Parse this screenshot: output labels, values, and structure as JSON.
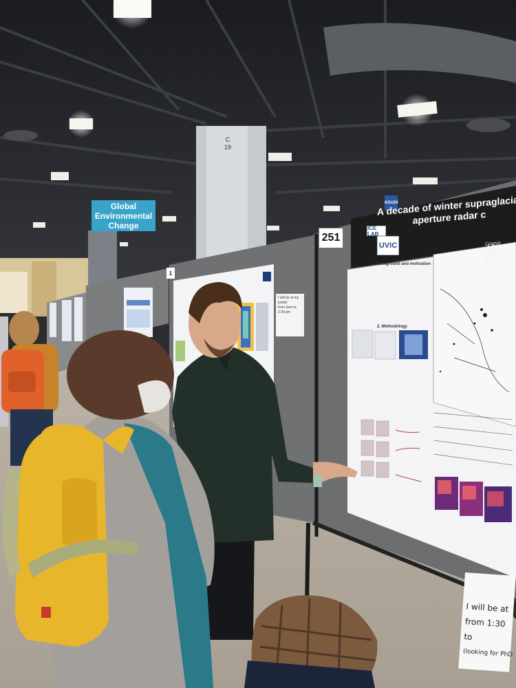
{
  "scene": {
    "hanging_sign": {
      "line1": "Global",
      "line2": "Environmental",
      "line3": "Change"
    },
    "pillar_label": {
      "line1": "C",
      "line2": "19"
    },
    "aisle_tag": "AGU24",
    "booth_number": "251",
    "neighbor_booth_number": "1"
  },
  "poster": {
    "title_line1": "A decade of winter supraglacial l",
    "title_line2": "aperture radar c",
    "author_line1": "Connor Dean¹, Ra",
    "author_line2": "(1) U",
    "author_line3": "(2) Scot",
    "logos": {
      "lab": "ICE LAB",
      "university": "UVIC"
    },
    "sections": {
      "background": "1. Background and motivation",
      "methodology": "2. Methodology",
      "results": "3. Result"
    }
  },
  "notes": {
    "small_note": {
      "line1": "I will be at my poster",
      "line2": "from 1pm to 2:30 pm"
    },
    "handwritten": {
      "line1": "I will be at",
      "line2": "from  1:30",
      "line3": "to",
      "line4": "(looking for PhD"
    }
  },
  "colors": {
    "ceiling": "#1f2125",
    "sign_blue": "#3aa3c9",
    "poster_header": "#1c1c1c",
    "board_fabric": "#6d6e70",
    "backpack_yellow": "#e8b62a",
    "backpack_orange": "#e0622a",
    "shirt_dark": "#23302a",
    "sweater_gray": "#a3a09b"
  }
}
